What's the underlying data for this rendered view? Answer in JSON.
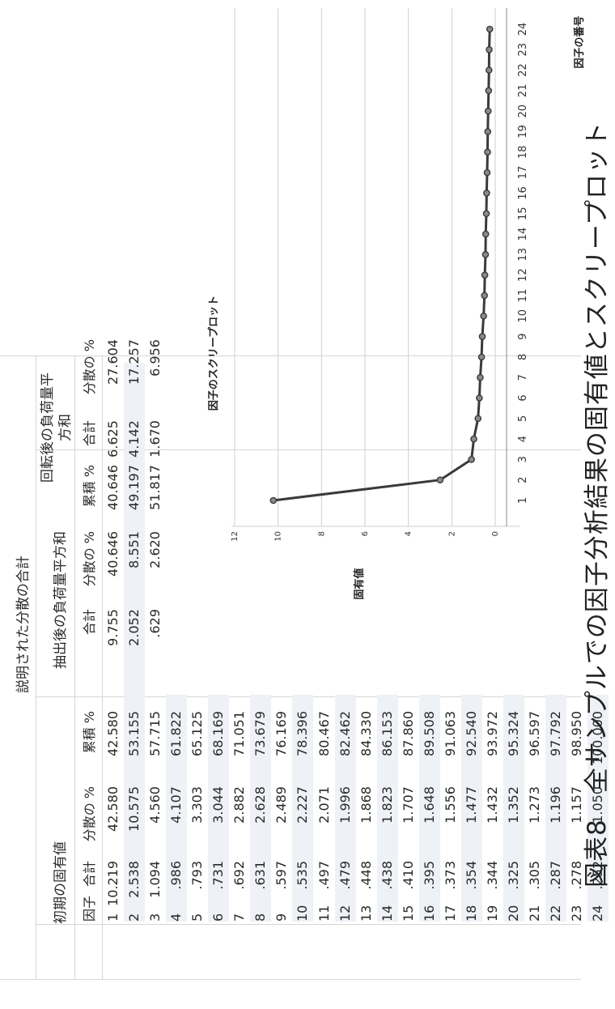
{
  "caption": "図表8　全サンプルでの因子分析結果の固有値とスクリープロット",
  "table": {
    "title": "説明された分散の合計",
    "row_header": "因子",
    "groups": [
      {
        "label": "初期の固有値"
      },
      {
        "label": "抽出後の負荷量平方和"
      },
      {
        "label": "回転後の負荷量平方和"
      }
    ],
    "subheaders": {
      "total": "合計",
      "variance": "分散の %",
      "cumulative": "累積 %"
    },
    "rows": [
      {
        "factor": "1",
        "initial": [
          "10.219",
          "42.580",
          "42.580"
        ],
        "extraction": [
          "9.755",
          "40.646",
          "40.646"
        ],
        "rotation": [
          "6.625",
          "27.604"
        ]
      },
      {
        "factor": "2",
        "initial": [
          "2.538",
          "10.575",
          "53.155"
        ],
        "extraction": [
          "2.052",
          "8.551",
          "49.197"
        ],
        "rotation": [
          "4.142",
          "17.257"
        ]
      },
      {
        "factor": "3",
        "initial": [
          "1.094",
          "4.560",
          "57.715"
        ],
        "extraction": [
          ".629",
          "2.620",
          "51.817"
        ],
        "rotation": [
          "1.670",
          "6.956"
        ]
      },
      {
        "factor": "4",
        "initial": [
          ".986",
          "4.107",
          "61.822"
        ]
      },
      {
        "factor": "5",
        "initial": [
          ".793",
          "3.303",
          "65.125"
        ]
      },
      {
        "factor": "6",
        "initial": [
          ".731",
          "3.044",
          "68.169"
        ]
      },
      {
        "factor": "7",
        "initial": [
          ".692",
          "2.882",
          "71.051"
        ]
      },
      {
        "factor": "8",
        "initial": [
          ".631",
          "2.628",
          "73.679"
        ]
      },
      {
        "factor": "9",
        "initial": [
          ".597",
          "2.489",
          "76.169"
        ]
      },
      {
        "factor": "10",
        "initial": [
          ".535",
          "2.227",
          "78.396"
        ]
      },
      {
        "factor": "11",
        "initial": [
          ".497",
          "2.071",
          "80.467"
        ]
      },
      {
        "factor": "12",
        "initial": [
          ".479",
          "1.996",
          "82.462"
        ]
      },
      {
        "factor": "13",
        "initial": [
          ".448",
          "1.868",
          "84.330"
        ]
      },
      {
        "factor": "14",
        "initial": [
          ".438",
          "1.823",
          "86.153"
        ]
      },
      {
        "factor": "15",
        "initial": [
          ".410",
          "1.707",
          "87.860"
        ]
      },
      {
        "factor": "16",
        "initial": [
          ".395",
          "1.648",
          "89.508"
        ]
      },
      {
        "factor": "17",
        "initial": [
          ".373",
          "1.556",
          "91.063"
        ]
      },
      {
        "factor": "18",
        "initial": [
          ".354",
          "1.477",
          "92.540"
        ]
      },
      {
        "factor": "19",
        "initial": [
          ".344",
          "1.432",
          "93.972"
        ]
      },
      {
        "factor": "20",
        "initial": [
          ".325",
          "1.352",
          "95.324"
        ]
      },
      {
        "factor": "21",
        "initial": [
          ".305",
          "1.273",
          "96.597"
        ]
      },
      {
        "factor": "22",
        "initial": [
          ".287",
          "1.196",
          "97.792"
        ]
      },
      {
        "factor": "23",
        "initial": [
          ".278",
          "1.157",
          "98.950"
        ]
      },
      {
        "factor": "24",
        "initial": [
          ".252",
          "1.050",
          "100.000"
        ]
      }
    ]
  },
  "chart_data": {
    "type": "line",
    "title": "因子のスクリープロット",
    "xlabel": "因子の番号",
    "ylabel": "固有値",
    "x": [
      1,
      2,
      3,
      4,
      5,
      6,
      7,
      8,
      9,
      10,
      11,
      12,
      13,
      14,
      15,
      16,
      17,
      18,
      19,
      20,
      21,
      22,
      23,
      24
    ],
    "y": [
      10.219,
      2.538,
      1.094,
      0.986,
      0.793,
      0.731,
      0.692,
      0.631,
      0.597,
      0.535,
      0.497,
      0.479,
      0.448,
      0.438,
      0.41,
      0.395,
      0.373,
      0.354,
      0.344,
      0.325,
      0.305,
      0.287,
      0.278,
      0.252
    ],
    "xticks": [
      "1",
      "2",
      "3",
      "4",
      "5",
      "6",
      "7",
      "8",
      "9",
      "10",
      "11",
      "12",
      "13",
      "14",
      "15",
      "16",
      "17",
      "18",
      "19",
      "20",
      "21",
      "22",
      "23",
      "24"
    ],
    "yticks": [
      "0",
      "2",
      "4",
      "6",
      "8",
      "10",
      "12"
    ],
    "ylim": [
      0,
      12
    ],
    "grid": "horizontal",
    "line_color": "#3a3a3a",
    "marker_color": "#8a8a8a"
  }
}
